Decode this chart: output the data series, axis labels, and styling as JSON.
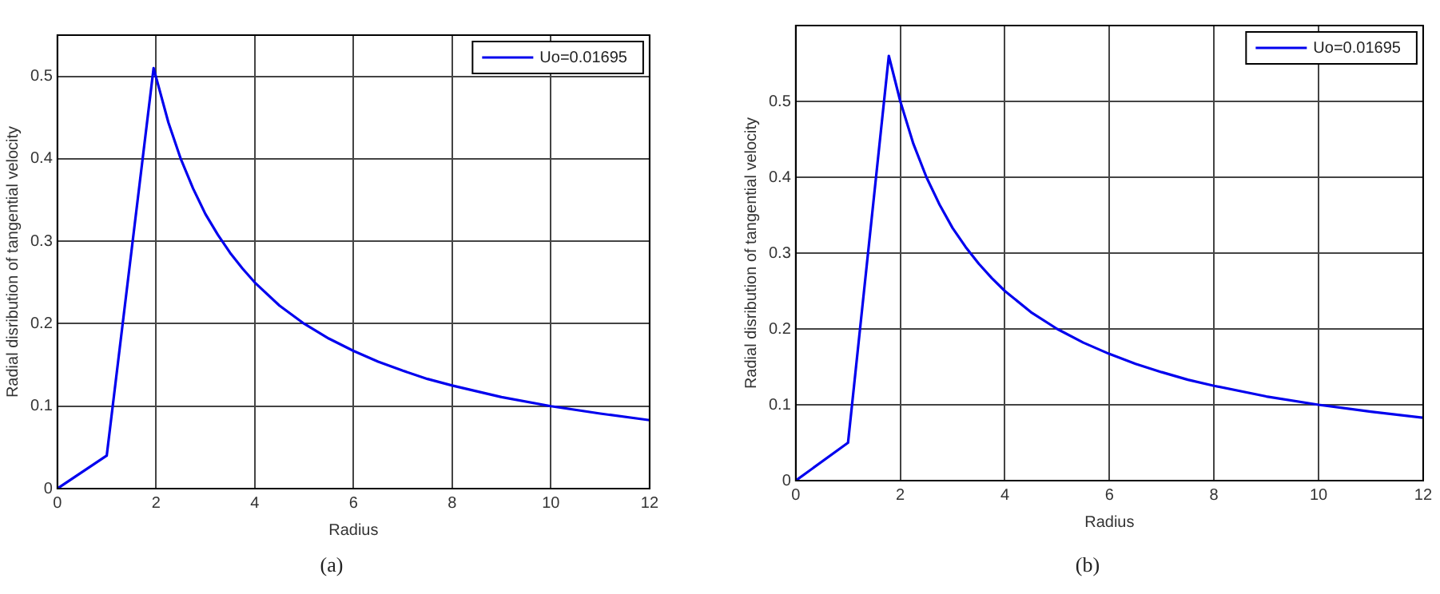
{
  "chart_data": [
    {
      "type": "line",
      "xlabel": "Radius",
      "ylabel": "Radial disribution of tangential velocity",
      "annotations": [
        "(a)"
      ],
      "x": [
        0,
        1,
        1.95,
        2.25,
        2.5,
        2.75,
        3,
        3.25,
        3.5,
        3.75,
        4,
        4.5,
        5,
        5.5,
        6,
        6.5,
        7,
        7.5,
        8,
        9,
        10,
        11,
        12
      ],
      "series": [
        {
          "name": "Uo=0.01695",
          "color": "#0000ee",
          "values": [
            0,
            0.04,
            0.51,
            0.444,
            0.4,
            0.364,
            0.333,
            0.308,
            0.286,
            0.267,
            0.25,
            0.222,
            0.2,
            0.182,
            0.167,
            0.154,
            0.143,
            0.133,
            0.125,
            0.111,
            0.1,
            0.091,
            0.083
          ]
        }
      ],
      "xlim": [
        0,
        12
      ],
      "ylim": [
        0,
        0.55
      ],
      "xticks": [
        0,
        2,
        4,
        6,
        8,
        10,
        12
      ],
      "yticks": [
        0,
        0.1,
        0.2,
        0.3,
        0.4,
        0.5
      ],
      "grid": true,
      "legend": "top right"
    },
    {
      "type": "line",
      "xlabel": "Radius",
      "ylabel": "Radial disribution of tangential velocity",
      "annotations": [
        "(b)"
      ],
      "x": [
        0,
        1,
        1.78,
        2,
        2.25,
        2.5,
        2.75,
        3,
        3.25,
        3.5,
        3.75,
        4,
        4.5,
        5,
        5.5,
        6,
        6.5,
        7,
        7.5,
        8,
        9,
        10,
        11,
        12
      ],
      "series": [
        {
          "name": "Uo=0.01695",
          "color": "#0000ee",
          "values": [
            0,
            0.05,
            0.56,
            0.5,
            0.444,
            0.4,
            0.364,
            0.333,
            0.308,
            0.286,
            0.267,
            0.25,
            0.222,
            0.2,
            0.182,
            0.167,
            0.154,
            0.143,
            0.133,
            0.125,
            0.111,
            0.1,
            0.091,
            0.083
          ]
        }
      ],
      "xlim": [
        0,
        12
      ],
      "ylim": [
        0,
        0.6
      ],
      "xticks": [
        0,
        2,
        4,
        6,
        8,
        10,
        12
      ],
      "yticks": [
        0,
        0.1,
        0.2,
        0.3,
        0.4,
        0.5
      ],
      "grid": true,
      "legend": "top right"
    }
  ]
}
